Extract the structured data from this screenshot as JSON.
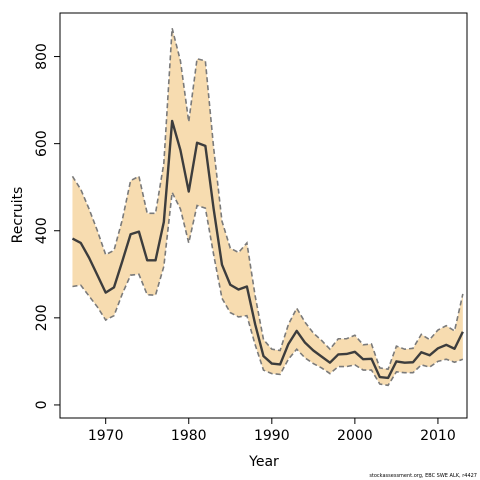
{
  "chart_data": {
    "type": "line",
    "title": "",
    "xlabel": "Year",
    "ylabel": "Recruits",
    "xlim": [
      1964.5,
      2013.5
    ],
    "ylim": [
      -30,
      900
    ],
    "xticks": [
      1970,
      1980,
      1990,
      2000,
      2010
    ],
    "yticks": [
      0,
      200,
      400,
      600,
      800
    ],
    "grid": false,
    "legend": "none",
    "colors": {
      "band": "#f7dcb0",
      "bound": "#7a7a7a",
      "line": "#3d3d3d",
      "axis": "#000000"
    },
    "x": [
      1966,
      1967,
      1968,
      1969,
      1970,
      1971,
      1972,
      1973,
      1974,
      1975,
      1976,
      1977,
      1978,
      1979,
      1980,
      1981,
      1982,
      1983,
      1984,
      1985,
      1986,
      1987,
      1988,
      1989,
      1990,
      1991,
      1992,
      1993,
      1994,
      1995,
      1996,
      1997,
      1998,
      1999,
      2000,
      2001,
      2002,
      2003,
      2004,
      2005,
      2006,
      2007,
      2008,
      2009,
      2010,
      2011,
      2012,
      2013
    ],
    "series": [
      {
        "values": [
          382,
          372,
          338,
          298,
          258,
          270,
          330,
          392,
          398,
          332,
          332,
          420,
          652,
          585,
          490,
          602,
          595,
          450,
          322,
          276,
          265,
          272,
          185,
          112,
          95,
          93,
          140,
          170,
          143,
          125,
          111,
          97,
          116,
          117,
          122,
          105,
          106,
          64,
          62,
          100,
          97,
          98,
          121,
          114,
          130,
          138,
          129,
          168
        ]
      }
    ],
    "lower": [
      272,
      275,
      250,
      225,
      195,
      205,
      255,
      298,
      300,
      253,
      252,
      318,
      488,
      450,
      372,
      458,
      452,
      345,
      245,
      212,
      202,
      205,
      138,
      80,
      72,
      70,
      105,
      128,
      108,
      95,
      85,
      72,
      88,
      88,
      92,
      80,
      80,
      48,
      45,
      76,
      74,
      74,
      92,
      87,
      100,
      105,
      98,
      105
    ],
    "upper": [
      525,
      495,
      450,
      400,
      345,
      355,
      425,
      515,
      525,
      440,
      440,
      555,
      865,
      790,
      650,
      795,
      790,
      590,
      422,
      360,
      350,
      372,
      250,
      150,
      128,
      125,
      185,
      222,
      190,
      165,
      148,
      128,
      152,
      152,
      160,
      138,
      140,
      85,
      82,
      135,
      128,
      130,
      162,
      150,
      172,
      182,
      170,
      255
    ],
    "credit": "stockassessment.org, EBC SWE ALK, r4427"
  }
}
